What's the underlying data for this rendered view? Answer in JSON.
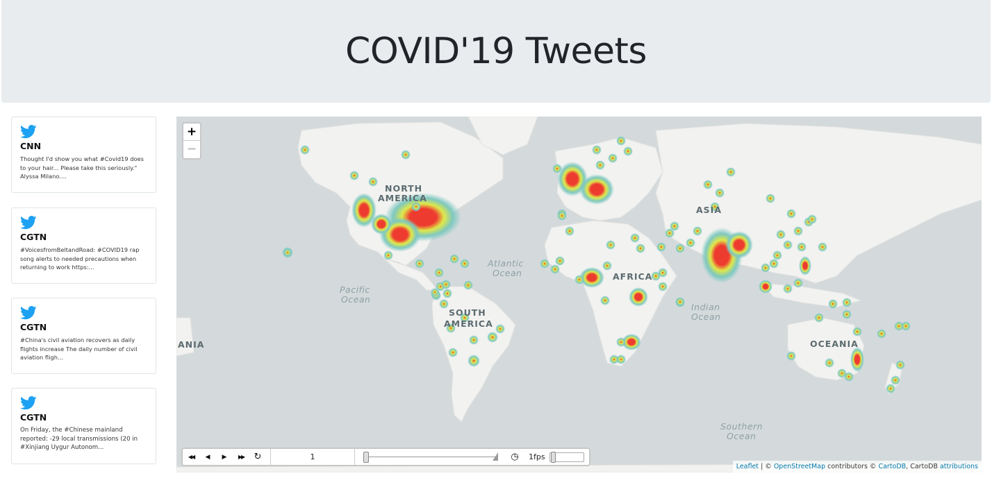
{
  "header": {
    "title": "COVID'19 Tweets"
  },
  "tweets": [
    {
      "source": "CNN",
      "text": "Thought I'd show you what #Covid19 does to your hair... Please take this seriously.\" Alyssa Milano...."
    },
    {
      "source": "CGTN",
      "text": "#VoicesfromBeltandRoad: #COVID19 rap song alerts to needed precautions when returning to work https:..."
    },
    {
      "source": "CGTN",
      "text": "#China's civil aviation recovers as daily flights increase The daily number of civil aviation fligh..."
    },
    {
      "source": "CGTN",
      "text": "On Friday, the #Chinese mainland reported: -29 local transmissions (20 in #Xinjiang Uygur Autonom..."
    }
  ],
  "map": {
    "zoom_in": "+",
    "zoom_out": "−",
    "labels": {
      "north_america_1": "NORTH",
      "north_america_2": "AMERICA",
      "south_america_1": "SOUTH",
      "south_america_2": "AMERICA",
      "africa": "AFRICA",
      "asia": "ASIA",
      "oceania": "OCEANIA",
      "asia_wrap": "ANIA",
      "atlantic_1": "Atlantic",
      "atlantic_2": "Ocean",
      "pacific_1": "Pacific",
      "pacific_2": "Ocean",
      "indian_1": "Indian",
      "indian_2": "Ocean",
      "southern_1": "Southern",
      "southern_2": "Ocean"
    },
    "colors": {
      "land": "#f2f2f0",
      "water": "#d4dadc",
      "heat_high": "#ee3b2f",
      "heat_mid": "#dfe84a",
      "heat_low": "#7ec8c0"
    }
  },
  "timebar": {
    "first_icon": "skip-back-icon",
    "prev_icon": "step-back-icon",
    "play_icon": "play-icon",
    "next_icon": "step-forward-icon",
    "loop_icon": "loop-icon",
    "frame": "1",
    "speed_icon": "clock-icon",
    "speed": "1fps",
    "glyphs": {
      "first": "◀◀",
      "prev": "◀",
      "play": "▶",
      "next": "▶▶",
      "loop": "↻",
      "clock": "◷"
    }
  },
  "attribution": {
    "leaflet": "Leaflet",
    "sep": " | © ",
    "osm": "OpenStreetMap",
    "contrib": " contributors © ",
    "cartodb": "CartoDB",
    "comma": ", CartoDB ",
    "attributions": "attributions"
  }
}
